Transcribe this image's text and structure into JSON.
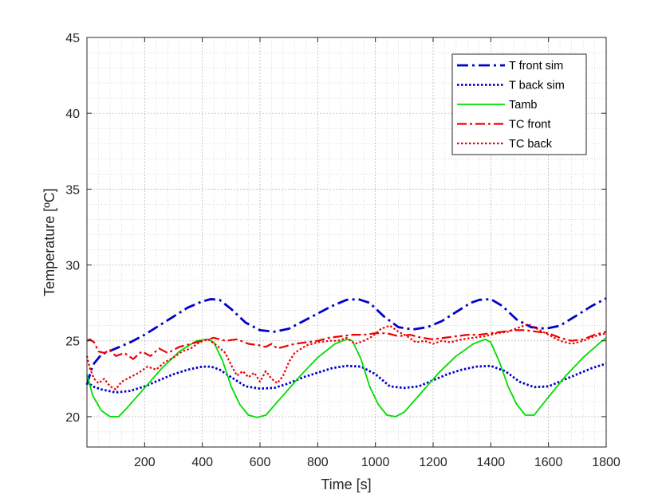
{
  "chart_data": {
    "type": "line",
    "title": "",
    "xlabel": "Time [s]",
    "ylabel": "Temperature [ºC]",
    "xlim": [
      0,
      1800
    ],
    "ylim": [
      18,
      45
    ],
    "xticks": [
      200,
      400,
      600,
      800,
      1000,
      1200,
      1400,
      1600,
      1800
    ],
    "yticks": [
      20,
      25,
      30,
      35,
      40,
      45
    ],
    "grid": "on (major and minor)",
    "legend_position": "top-right",
    "series": [
      {
        "name": "T front sim",
        "color": "#0000cc",
        "style": "dash-dot",
        "x": [
          0,
          20,
          50,
          100,
          150,
          200,
          250,
          300,
          350,
          400,
          430,
          460,
          500,
          550,
          600,
          650,
          700,
          750,
          800,
          850,
          900,
          940,
          980,
          1030,
          1080,
          1130,
          1180,
          1230,
          1280,
          1330,
          1360,
          1400,
          1440,
          1490,
          1540,
          1590,
          1640,
          1700,
          1750,
          1800
        ],
        "y": [
          22.1,
          23.4,
          24.1,
          24.5,
          24.9,
          25.4,
          26.0,
          26.6,
          27.2,
          27.6,
          27.75,
          27.7,
          27.1,
          26.2,
          25.7,
          25.6,
          25.8,
          26.3,
          26.8,
          27.3,
          27.7,
          27.75,
          27.5,
          26.6,
          25.9,
          25.75,
          25.9,
          26.3,
          26.9,
          27.5,
          27.7,
          27.75,
          27.3,
          26.4,
          25.9,
          25.8,
          26.0,
          26.7,
          27.3,
          27.8
        ]
      },
      {
        "name": "T back sim",
        "color": "#0000cc",
        "style": "dotted",
        "x": [
          0,
          20,
          50,
          100,
          150,
          200,
          250,
          300,
          350,
          400,
          430,
          460,
          500,
          550,
          600,
          650,
          700,
          750,
          800,
          850,
          900,
          950,
          1000,
          1050,
          1100,
          1150,
          1200,
          1250,
          1300,
          1350,
          1400,
          1450,
          1500,
          1550,
          1600,
          1650,
          1700,
          1750,
          1800
        ],
        "y": [
          22.3,
          22.0,
          21.8,
          21.6,
          21.7,
          22.0,
          22.4,
          22.8,
          23.1,
          23.3,
          23.3,
          23.1,
          22.6,
          22.0,
          21.85,
          21.9,
          22.2,
          22.6,
          22.9,
          23.2,
          23.35,
          23.3,
          22.8,
          22.0,
          21.9,
          22.0,
          22.4,
          22.8,
          23.1,
          23.3,
          23.35,
          23.0,
          22.3,
          21.95,
          22.0,
          22.4,
          22.8,
          23.2,
          23.5
        ]
      },
      {
        "name": "Tamb",
        "color": "#00dd00",
        "style": "solid",
        "x": [
          0,
          20,
          50,
          80,
          110,
          140,
          200,
          260,
          320,
          380,
          420,
          440,
          470,
          500,
          530,
          560,
          590,
          620,
          680,
          740,
          800,
          860,
          900,
          920,
          950,
          980,
          1010,
          1040,
          1070,
          1100,
          1160,
          1220,
          1280,
          1340,
          1380,
          1400,
          1430,
          1460,
          1490,
          1520,
          1550,
          1600,
          1660,
          1720,
          1780,
          1800
        ],
        "y": [
          22.8,
          21.4,
          20.4,
          20.0,
          20.0,
          20.6,
          21.9,
          23.2,
          24.3,
          25.0,
          25.1,
          24.9,
          23.7,
          22.0,
          20.8,
          20.1,
          19.95,
          20.1,
          21.4,
          22.7,
          23.9,
          24.8,
          25.1,
          25.0,
          23.8,
          22.0,
          20.8,
          20.1,
          20.0,
          20.3,
          21.6,
          22.9,
          24.0,
          24.8,
          25.1,
          24.9,
          23.6,
          22.0,
          20.8,
          20.1,
          20.1,
          21.3,
          22.7,
          23.9,
          24.9,
          25.2
        ]
      },
      {
        "name": "TC front",
        "color": "#ee0000",
        "style": "dash-dot",
        "x": [
          0,
          10,
          25,
          40,
          60,
          80,
          100,
          130,
          160,
          190,
          220,
          250,
          280,
          320,
          360,
          400,
          440,
          480,
          520,
          560,
          600,
          620,
          640,
          660,
          680,
          720,
          760,
          800,
          840,
          880,
          920,
          960,
          1000,
          1040,
          1080,
          1120,
          1160,
          1200,
          1240,
          1280,
          1320,
          1360,
          1400,
          1440,
          1480,
          1520,
          1560,
          1600,
          1640,
          1680,
          1720,
          1760,
          1800
        ],
        "y": [
          25.0,
          25.1,
          24.9,
          24.3,
          24.2,
          24.4,
          24.0,
          24.2,
          23.8,
          24.3,
          24.0,
          24.5,
          24.2,
          24.6,
          24.8,
          25.0,
          25.2,
          25.0,
          25.1,
          24.8,
          24.7,
          24.6,
          24.8,
          24.5,
          24.6,
          24.8,
          24.9,
          25.0,
          25.2,
          25.3,
          25.4,
          25.4,
          25.5,
          25.5,
          25.3,
          25.4,
          25.2,
          25.1,
          25.2,
          25.3,
          25.4,
          25.4,
          25.5,
          25.6,
          25.7,
          25.7,
          25.6,
          25.5,
          25.2,
          25.0,
          25.1,
          25.4,
          25.6
        ]
      },
      {
        "name": "TC back",
        "color": "#ee0000",
        "style": "dotted",
        "x": [
          0,
          10,
          25,
          40,
          60,
          80,
          100,
          120,
          150,
          180,
          210,
          240,
          270,
          300,
          330,
          360,
          390,
          420,
          450,
          480,
          500,
          520,
          540,
          560,
          580,
          600,
          620,
          640,
          660,
          680,
          700,
          720,
          760,
          800,
          840,
          870,
          900,
          930,
          960,
          990,
          1020,
          1050,
          1080,
          1110,
          1140,
          1170,
          1200,
          1230,
          1260,
          1300,
          1340,
          1380,
          1420,
          1460,
          1500,
          1530,
          1560,
          1600,
          1640,
          1680,
          1720,
          1760,
          1800
        ],
        "y": [
          24.0,
          23.2,
          22.5,
          22.2,
          22.5,
          22.0,
          21.8,
          22.3,
          22.6,
          22.9,
          23.3,
          23.1,
          23.6,
          23.9,
          24.3,
          24.5,
          24.9,
          25.1,
          24.7,
          24.2,
          23.4,
          22.7,
          23.0,
          22.6,
          22.9,
          22.3,
          23.0,
          22.5,
          22.2,
          22.7,
          23.6,
          24.2,
          24.7,
          24.9,
          25.0,
          25.0,
          25.2,
          24.8,
          25.0,
          25.3,
          25.8,
          26.0,
          25.6,
          25.3,
          24.9,
          25.0,
          24.8,
          25.0,
          24.9,
          25.1,
          25.2,
          25.3,
          25.5,
          25.6,
          25.9,
          26.1,
          25.8,
          25.4,
          25.0,
          24.8,
          25.0,
          25.3,
          25.5
        ]
      }
    ]
  }
}
